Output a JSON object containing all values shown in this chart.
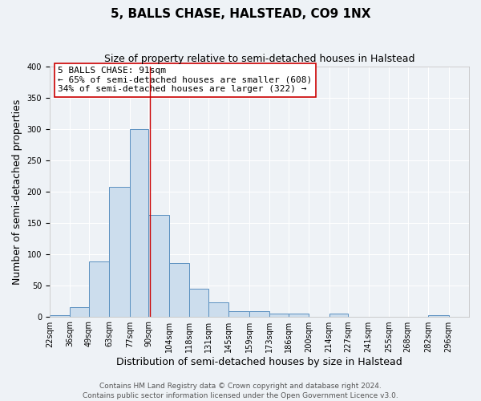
{
  "title": "5, BALLS CHASE, HALSTEAD, CO9 1NX",
  "subtitle": "Size of property relative to semi-detached houses in Halstead",
  "xlabel": "Distribution of semi-detached houses by size in Halstead",
  "ylabel": "Number of semi-detached properties",
  "bin_labels": [
    "22sqm",
    "36sqm",
    "49sqm",
    "63sqm",
    "77sqm",
    "90sqm",
    "104sqm",
    "118sqm",
    "131sqm",
    "145sqm",
    "159sqm",
    "173sqm",
    "186sqm",
    "200sqm",
    "214sqm",
    "227sqm",
    "241sqm",
    "255sqm",
    "268sqm",
    "282sqm",
    "296sqm"
  ],
  "bin_edges": [
    22,
    36,
    49,
    63,
    77,
    90,
    104,
    118,
    131,
    145,
    159,
    173,
    186,
    200,
    214,
    227,
    241,
    255,
    268,
    282,
    296
  ],
  "bar_heights": [
    2,
    15,
    88,
    208,
    300,
    163,
    85,
    45,
    22,
    8,
    8,
    4,
    4,
    0,
    4,
    0,
    0,
    0,
    0,
    2
  ],
  "bar_color": "#ccdded",
  "bar_edge_color": "#5a90c0",
  "property_value": 91,
  "vline_color": "#cc0000",
  "annotation_box_text": [
    "5 BALLS CHASE: 91sqm",
    "← 65% of semi-detached houses are smaller (608)",
    "34% of semi-detached houses are larger (322) →"
  ],
  "annotation_box_edge_color": "#cc0000",
  "ylim": [
    0,
    400
  ],
  "yticks": [
    0,
    50,
    100,
    150,
    200,
    250,
    300,
    350,
    400
  ],
  "footer_lines": [
    "Contains HM Land Registry data © Crown copyright and database right 2024.",
    "Contains public sector information licensed under the Open Government Licence v3.0."
  ],
  "background_color": "#eef2f6",
  "grid_color": "#ffffff",
  "title_fontsize": 11,
  "subtitle_fontsize": 9,
  "axis_label_fontsize": 9,
  "tick_fontsize": 7,
  "annotation_fontsize": 8,
  "footer_fontsize": 6.5
}
